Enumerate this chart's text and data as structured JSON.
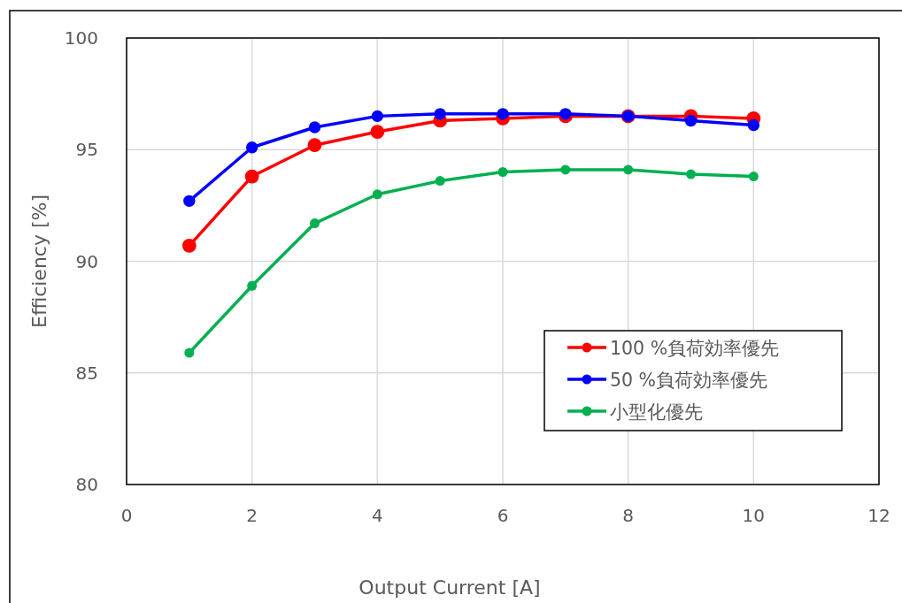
{
  "chart_data": {
    "type": "line",
    "xlabel": "Output Current [A]",
    "ylabel": "Efficiency [%]",
    "x": [
      1,
      2,
      3,
      4,
      5,
      6,
      7,
      8,
      9,
      10
    ],
    "series": [
      {
        "name": "100 %負荷効率優先",
        "color": "#ff0000",
        "values": [
          90.7,
          93.8,
          95.2,
          95.8,
          96.3,
          96.4,
          96.5,
          96.5,
          96.5,
          96.4
        ]
      },
      {
        "name": "50 %負荷効率優先",
        "color": "#0000ff",
        "values": [
          92.7,
          95.1,
          96.0,
          96.5,
          96.6,
          96.6,
          96.6,
          96.5,
          96.3,
          96.1
        ]
      },
      {
        "name": "小型化優先",
        "color": "#00b050",
        "values": [
          85.9,
          88.9,
          91.7,
          93.0,
          93.6,
          94.0,
          94.1,
          94.1,
          93.9,
          93.8
        ]
      }
    ],
    "xlim": [
      0,
      12
    ],
    "xticks": [
      0,
      2,
      4,
      6,
      8,
      10,
      12
    ],
    "ylim": [
      80,
      100
    ],
    "yticks": [
      80,
      85,
      90,
      95,
      100
    ],
    "grid": true,
    "legend": "bottom right",
    "marker": "circle",
    "line_style": "solid"
  }
}
